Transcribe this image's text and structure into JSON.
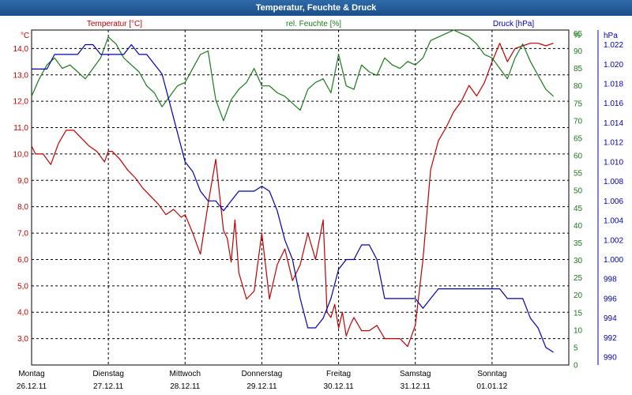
{
  "window": {
    "title": "Temperatur, Feuchte & Druck"
  },
  "colors": {
    "temperature": "#c00000",
    "humidity": "#1a7a1a",
    "pressure": "#0000b0",
    "grid": "#000000"
  },
  "chart_data": {
    "type": "line",
    "title": "Temperatur, Feuchte & Druck",
    "x_ticks": [
      {
        "day": "Montag",
        "date": "26.12.11",
        "x": 0
      },
      {
        "day": "Dienstag",
        "date": "27.12.11",
        "x": 1
      },
      {
        "day": "Mittwoch",
        "date": "28.12.11",
        "x": 2
      },
      {
        "day": "Donnerstag",
        "date": "29.12.11",
        "x": 3
      },
      {
        "day": "Freitag",
        "date": "30.12.11",
        "x": 4
      },
      {
        "day": "Samstag",
        "date": "31.12.11",
        "x": 5
      },
      {
        "day": "Sonntag",
        "date": "01.01.12",
        "x": 6
      }
    ],
    "xlim": [
      0,
      7
    ],
    "grid": true,
    "axes": {
      "temperature": {
        "label": "Temperatur [°C]",
        "unit": "°C",
        "ylim": [
          2.0,
          14.7
        ],
        "ticks": [
          "3,0",
          "4,0",
          "5,0",
          "6,0",
          "7,0",
          "8,0",
          "9,0",
          "10,0",
          "11,0",
          "12,0",
          "13,0",
          "14,0"
        ],
        "tick_values": [
          3,
          4,
          5,
          6,
          7,
          8,
          9,
          10,
          11,
          12,
          13,
          14
        ]
      },
      "humidity": {
        "label": "rel. Feuchte [%]",
        "unit": "%",
        "ylim": [
          0,
          96
        ],
        "ticks": [
          "0",
          "5",
          "10",
          "15",
          "20",
          "25",
          "30",
          "35",
          "40",
          "45",
          "50",
          "55",
          "60",
          "65",
          "70",
          "75",
          "80",
          "85",
          "90",
          "95",
          "%"
        ],
        "tick_values": [
          0,
          5,
          10,
          15,
          20,
          25,
          30,
          35,
          40,
          45,
          50,
          55,
          60,
          65,
          70,
          75,
          80,
          85,
          90,
          95,
          96
        ]
      },
      "pressure": {
        "label": "Druck [hPa]",
        "unit": "hPa",
        "ylim": [
          989.2,
          1023.5
        ],
        "ticks": [
          "990",
          "992",
          "994",
          "996",
          "998",
          "1.000",
          "1.002",
          "1.004",
          "1.006",
          "1.008",
          "1.010",
          "1.012",
          "1.014",
          "1.016",
          "1.018",
          "1.020",
          "1.022",
          "hPa"
        ],
        "tick_values": [
          990,
          992,
          994,
          996,
          998,
          1000,
          1002,
          1004,
          1006,
          1008,
          1010,
          1012,
          1014,
          1016,
          1018,
          1020,
          1022,
          1023.5
        ]
      }
    },
    "series": [
      {
        "name": "Temperatur [°C]",
        "axis": "temperature",
        "color": "#c00000",
        "x": [
          0,
          0.05,
          0.15,
          0.25,
          0.35,
          0.45,
          0.55,
          0.65,
          0.75,
          0.85,
          0.95,
          1.0,
          1.05,
          1.15,
          1.25,
          1.35,
          1.45,
          1.55,
          1.65,
          1.75,
          1.85,
          1.95,
          2.0,
          2.1,
          2.2,
          2.3,
          2.4,
          2.5,
          2.55,
          2.6,
          2.65,
          2.7,
          2.8,
          2.9,
          3.0,
          3.1,
          3.2,
          3.3,
          3.4,
          3.5,
          3.6,
          3.7,
          3.8,
          3.85,
          3.9,
          3.95,
          4.0,
          4.05,
          4.1,
          4.15,
          4.2,
          4.3,
          4.4,
          4.5,
          4.6,
          4.7,
          4.8,
          4.9,
          5.0,
          5.1,
          5.2,
          5.3,
          5.4,
          5.5,
          5.6,
          5.7,
          5.8,
          5.9,
          6.0,
          6.1,
          6.2,
          6.3,
          6.4,
          6.5,
          6.6,
          6.7,
          6.8
        ],
        "values": [
          10.3,
          10.0,
          10.0,
          9.6,
          10.4,
          10.9,
          10.9,
          10.6,
          10.3,
          10.1,
          9.7,
          10.1,
          10.1,
          9.8,
          9.4,
          9.1,
          8.7,
          8.4,
          8.1,
          7.7,
          7.9,
          7.6,
          7.7,
          7.0,
          6.2,
          8.1,
          9.8,
          7.1,
          6.8,
          5.9,
          7.5,
          5.5,
          4.5,
          4.8,
          7.0,
          4.5,
          5.8,
          6.4,
          5.2,
          5.8,
          7.0,
          6.0,
          7.5,
          4.0,
          3.8,
          4.3,
          3.4,
          4.0,
          3.1,
          3.5,
          3.8,
          3.3,
          3.3,
          3.5,
          3.0,
          3.0,
          3.0,
          2.7,
          3.5,
          6.0,
          9.4,
          10.5,
          11.0,
          11.6,
          12.0,
          12.6,
          12.2,
          12.7,
          13.5,
          14.2,
          13.5,
          14.0,
          14.1,
          14.2,
          14.2,
          14.1,
          14.2
        ],
        "note": "approximate trace"
      },
      {
        "name": "rel. Feuchte [%]",
        "axis": "humidity",
        "color": "#1a7a1a",
        "x": [
          0,
          0.1,
          0.2,
          0.3,
          0.4,
          0.5,
          0.6,
          0.7,
          0.8,
          0.9,
          1.0,
          1.1,
          1.2,
          1.3,
          1.4,
          1.5,
          1.6,
          1.7,
          1.8,
          1.9,
          2.0,
          2.1,
          2.2,
          2.3,
          2.4,
          2.5,
          2.6,
          2.7,
          2.8,
          2.9,
          3.0,
          3.1,
          3.2,
          3.3,
          3.4,
          3.5,
          3.6,
          3.7,
          3.8,
          3.9,
          4.0,
          4.1,
          4.2,
          4.3,
          4.4,
          4.5,
          4.6,
          4.7,
          4.8,
          4.9,
          5.0,
          5.1,
          5.2,
          5.3,
          5.4,
          5.5,
          5.6,
          5.7,
          5.8,
          5.9,
          6.0,
          6.1,
          6.2,
          6.3,
          6.4,
          6.5,
          6.6,
          6.7,
          6.8
        ],
        "values": [
          77,
          82,
          86,
          88,
          85,
          86,
          84,
          82,
          85,
          88,
          94,
          92,
          88,
          86,
          84,
          80,
          78,
          74,
          77,
          80,
          81,
          85,
          89,
          90,
          76,
          70,
          76,
          79,
          81,
          85,
          80,
          80,
          78,
          77,
          75,
          73,
          79,
          81,
          82,
          78,
          89,
          80,
          79,
          86,
          84,
          83,
          88,
          86,
          85,
          87,
          86,
          88,
          93,
          94,
          95,
          96,
          95,
          94,
          92,
          89,
          88,
          85,
          82,
          88,
          92,
          87,
          83,
          79,
          77
        ],
        "note": "approximate trace"
      },
      {
        "name": "Druck [hPa]",
        "axis": "pressure",
        "color": "#0000b0",
        "x": [
          0,
          0.1,
          0.2,
          0.3,
          0.4,
          0.5,
          0.6,
          0.7,
          0.8,
          0.9,
          1.0,
          1.1,
          1.2,
          1.3,
          1.4,
          1.5,
          1.6,
          1.7,
          1.8,
          1.9,
          2.0,
          2.1,
          2.2,
          2.3,
          2.4,
          2.5,
          2.6,
          2.7,
          2.8,
          2.9,
          3.0,
          3.1,
          3.2,
          3.3,
          3.4,
          3.5,
          3.6,
          3.7,
          3.8,
          3.9,
          4.0,
          4.1,
          4.2,
          4.3,
          4.4,
          4.5,
          4.6,
          4.7,
          4.8,
          4.9,
          5.0,
          5.1,
          5.2,
          5.3,
          5.4,
          5.5,
          5.6,
          5.7,
          5.8,
          5.9,
          6.0,
          6.1,
          6.2,
          6.3,
          6.4,
          6.5,
          6.6,
          6.7,
          6.8
        ],
        "values": [
          1019.5,
          1019.5,
          1019.5,
          1021.0,
          1021.0,
          1021.0,
          1021.0,
          1022.0,
          1022.0,
          1021.0,
          1021.0,
          1021.0,
          1021.0,
          1022.0,
          1021.0,
          1021.0,
          1020.0,
          1019.0,
          1016.0,
          1013.0,
          1010.0,
          1009.0,
          1007.0,
          1006.0,
          1006.0,
          1005.0,
          1006.0,
          1007.0,
          1007.0,
          1007.0,
          1007.5,
          1007.0,
          1005.0,
          1002.0,
          1000.0,
          996.0,
          993.0,
          993.0,
          994.0,
          996.0,
          999.0,
          1000.0,
          1000.0,
          1001.5,
          1001.5,
          1000.0,
          996.0,
          996.0,
          996.0,
          996.0,
          996.0,
          995.0,
          996.0,
          997.0,
          997.0,
          997.0,
          997.0,
          997.0,
          997.0,
          997.0,
          997.0,
          997.0,
          996.0,
          996.0,
          996.0,
          994.0,
          993.0,
          991.0,
          990.5
        ],
        "note": "approximate trace"
      }
    ]
  }
}
